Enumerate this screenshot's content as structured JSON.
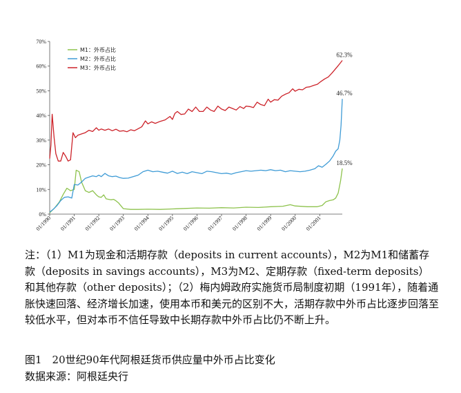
{
  "chart_data": {
    "type": "line",
    "y_unit": "%",
    "ylim": [
      0,
      70
    ],
    "y_ticks": [
      0,
      10,
      20,
      30,
      40,
      50,
      60,
      70
    ],
    "y_tick_labels": [
      "0%",
      "10%",
      "20%",
      "30%",
      "40%",
      "50%",
      "60%",
      "70%"
    ],
    "x_start_year": 1990,
    "x_end_year": 2001.92,
    "x_ticks": [
      1990,
      1991,
      1992,
      1993,
      1994,
      1995,
      1996,
      1997,
      1998,
      1999,
      2000,
      2001
    ],
    "x_tick_labels": [
      "01/1990",
      "01/1991",
      "01/1992",
      "01/1993",
      "01/1994",
      "01/1995",
      "01/1996",
      "01/1997",
      "01/1998",
      "01/1999",
      "01/2000",
      "01/2001"
    ],
    "grid": false,
    "legend_position": "top-left",
    "series": [
      {
        "name": "M1：外币占比",
        "color": "#8dc24c",
        "points": [
          [
            1990.0,
            0.5
          ],
          [
            1990.2,
            2.5
          ],
          [
            1990.4,
            5
          ],
          [
            1990.55,
            8
          ],
          [
            1990.7,
            10.5
          ],
          [
            1990.85,
            9.5
          ],
          [
            1991.0,
            10
          ],
          [
            1991.08,
            17.8
          ],
          [
            1991.2,
            17.2
          ],
          [
            1991.3,
            13
          ],
          [
            1991.45,
            9.5
          ],
          [
            1991.6,
            8.8
          ],
          [
            1991.75,
            9.5
          ],
          [
            1991.9,
            7.8
          ],
          [
            1992.0,
            7
          ],
          [
            1992.1,
            6.8
          ],
          [
            1992.2,
            7.8
          ],
          [
            1992.3,
            6.2
          ],
          [
            1992.4,
            6.0
          ],
          [
            1992.5,
            5.8
          ],
          [
            1992.6,
            6.0
          ],
          [
            1992.7,
            5.4
          ],
          [
            1992.8,
            4.6
          ],
          [
            1992.9,
            3.4
          ],
          [
            1993.0,
            2.2
          ],
          [
            1993.3,
            1.9
          ],
          [
            1993.6,
            1.9
          ],
          [
            1994.0,
            2.0
          ],
          [
            1994.5,
            1.9
          ],
          [
            1995.0,
            2.1
          ],
          [
            1995.5,
            2.3
          ],
          [
            1996.0,
            2.5
          ],
          [
            1996.5,
            2.4
          ],
          [
            1997.0,
            2.6
          ],
          [
            1997.5,
            2.5
          ],
          [
            1998.0,
            2.8
          ],
          [
            1998.5,
            2.7
          ],
          [
            1999.0,
            3.0
          ],
          [
            1999.5,
            3.2
          ],
          [
            1999.8,
            3.8
          ],
          [
            2000.0,
            3.3
          ],
          [
            2000.5,
            3.0
          ],
          [
            2000.9,
            3.0
          ],
          [
            2001.1,
            3.5
          ],
          [
            2001.25,
            5.0
          ],
          [
            2001.4,
            5.5
          ],
          [
            2001.55,
            5.8
          ],
          [
            2001.65,
            6.5
          ],
          [
            2001.75,
            8.5
          ],
          [
            2001.85,
            13.5
          ],
          [
            2001.92,
            18.5
          ]
        ]
      },
      {
        "name": "M2：外币占比",
        "color": "#3e9bd6",
        "points": [
          [
            1990.0,
            0.8
          ],
          [
            1990.15,
            2
          ],
          [
            1990.3,
            3.5
          ],
          [
            1990.45,
            5.5
          ],
          [
            1990.6,
            6.8
          ],
          [
            1990.75,
            7
          ],
          [
            1990.9,
            6.5
          ],
          [
            1991.0,
            12
          ],
          [
            1991.15,
            11.8
          ],
          [
            1991.3,
            13
          ],
          [
            1991.45,
            14.5
          ],
          [
            1991.6,
            15
          ],
          [
            1991.75,
            15.5
          ],
          [
            1991.9,
            15.2
          ],
          [
            1992.0,
            15.8
          ],
          [
            1992.1,
            15.2
          ],
          [
            1992.25,
            16.5
          ],
          [
            1992.4,
            15.5
          ],
          [
            1992.55,
            15.2
          ],
          [
            1992.7,
            15.4
          ],
          [
            1992.85,
            14.8
          ],
          [
            1993.0,
            14.5
          ],
          [
            1993.2,
            14.6
          ],
          [
            1993.4,
            15.2
          ],
          [
            1993.6,
            15.8
          ],
          [
            1993.8,
            17.2
          ],
          [
            1994.0,
            17.8
          ],
          [
            1994.2,
            17.2
          ],
          [
            1994.4,
            17.4
          ],
          [
            1994.6,
            17.0
          ],
          [
            1994.8,
            16.6
          ],
          [
            1995.0,
            17.4
          ],
          [
            1995.2,
            16.5
          ],
          [
            1995.4,
            17.0
          ],
          [
            1995.6,
            16.4
          ],
          [
            1995.8,
            17.2
          ],
          [
            1996.0,
            16.8
          ],
          [
            1996.2,
            16.4
          ],
          [
            1996.4,
            17.4
          ],
          [
            1996.6,
            17.2
          ],
          [
            1996.8,
            16.8
          ],
          [
            1997.0,
            16.4
          ],
          [
            1997.2,
            16.6
          ],
          [
            1997.4,
            16.2
          ],
          [
            1997.6,
            16.8
          ],
          [
            1997.8,
            17.2
          ],
          [
            1998.0,
            17.6
          ],
          [
            1998.2,
            17.4
          ],
          [
            1998.4,
            17.6
          ],
          [
            1998.6,
            17.8
          ],
          [
            1998.8,
            17.6
          ],
          [
            1999.0,
            18.0
          ],
          [
            1999.2,
            17.6
          ],
          [
            1999.4,
            17.8
          ],
          [
            1999.6,
            17.2
          ],
          [
            1999.8,
            17.6
          ],
          [
            2000.0,
            17.4
          ],
          [
            2000.2,
            17.2
          ],
          [
            2000.4,
            17.4
          ],
          [
            2000.6,
            17.8
          ],
          [
            2000.8,
            18.4
          ],
          [
            2000.95,
            19.6
          ],
          [
            2001.1,
            19.0
          ],
          [
            2001.25,
            20.2
          ],
          [
            2001.4,
            21.5
          ],
          [
            2001.55,
            23.6
          ],
          [
            2001.65,
            25.5
          ],
          [
            2001.75,
            26.5
          ],
          [
            2001.82,
            30
          ],
          [
            2001.87,
            36
          ],
          [
            2001.92,
            46.7
          ]
        ]
      },
      {
        "name": "M3：外币占比",
        "color": "#cc2128",
        "points": [
          [
            1990.0,
            22.5
          ],
          [
            1990.05,
            28
          ],
          [
            1990.1,
            40.5
          ],
          [
            1990.18,
            31
          ],
          [
            1990.25,
            24.5
          ],
          [
            1990.35,
            21.5
          ],
          [
            1990.45,
            21.5
          ],
          [
            1990.55,
            25
          ],
          [
            1990.65,
            23.5
          ],
          [
            1990.75,
            21.5
          ],
          [
            1990.85,
            22
          ],
          [
            1990.95,
            33
          ],
          [
            1991.05,
            31
          ],
          [
            1991.15,
            32
          ],
          [
            1991.3,
            32.5
          ],
          [
            1991.45,
            33
          ],
          [
            1991.6,
            34
          ],
          [
            1991.75,
            33.5
          ],
          [
            1991.9,
            35
          ],
          [
            1992.0,
            34
          ],
          [
            1992.1,
            34.5
          ],
          [
            1992.25,
            34.0
          ],
          [
            1992.4,
            34.5
          ],
          [
            1992.55,
            33.8
          ],
          [
            1992.7,
            34.4
          ],
          [
            1992.85,
            33.6
          ],
          [
            1993.0,
            33.8
          ],
          [
            1993.15,
            33.4
          ],
          [
            1993.3,
            34.2
          ],
          [
            1993.45,
            33.8
          ],
          [
            1993.6,
            34.6
          ],
          [
            1993.75,
            35.4
          ],
          [
            1993.9,
            37.8
          ],
          [
            1994.0,
            36.6
          ],
          [
            1994.15,
            37.4
          ],
          [
            1994.3,
            36.8
          ],
          [
            1994.5,
            37.6
          ],
          [
            1994.7,
            38.2
          ],
          [
            1994.9,
            39.6
          ],
          [
            1995.0,
            38.4
          ],
          [
            1995.1,
            40.8
          ],
          [
            1995.2,
            41.6
          ],
          [
            1995.35,
            40.4
          ],
          [
            1995.5,
            40.6
          ],
          [
            1995.65,
            42.6
          ],
          [
            1995.8,
            41.6
          ],
          [
            1995.95,
            43.4
          ],
          [
            1996.1,
            41.6
          ],
          [
            1996.25,
            41.6
          ],
          [
            1996.4,
            43.4
          ],
          [
            1996.55,
            42.2
          ],
          [
            1996.7,
            41.6
          ],
          [
            1996.85,
            43.8
          ],
          [
            1997.0,
            42.6
          ],
          [
            1997.15,
            42.0
          ],
          [
            1997.3,
            43.4
          ],
          [
            1997.45,
            42.8
          ],
          [
            1997.6,
            42.2
          ],
          [
            1997.75,
            43.6
          ],
          [
            1997.9,
            42.8
          ],
          [
            1998.0,
            43.8
          ],
          [
            1998.15,
            43.6
          ],
          [
            1998.3,
            43.2
          ],
          [
            1998.45,
            45.4
          ],
          [
            1998.6,
            44.4
          ],
          [
            1998.75,
            44.0
          ],
          [
            1998.9,
            46.6
          ],
          [
            1999.0,
            45.4
          ],
          [
            1999.15,
            46.4
          ],
          [
            1999.3,
            46.2
          ],
          [
            1999.45,
            47.8
          ],
          [
            1999.6,
            48.6
          ],
          [
            1999.75,
            49.2
          ],
          [
            1999.9,
            50.8
          ],
          [
            2000.0,
            49.8
          ],
          [
            2000.15,
            50.6
          ],
          [
            2000.3,
            50.4
          ],
          [
            2000.45,
            51.4
          ],
          [
            2000.6,
            51.6
          ],
          [
            2000.75,
            52.2
          ],
          [
            2000.9,
            52.6
          ],
          [
            2001.05,
            53.8
          ],
          [
            2001.2,
            54.8
          ],
          [
            2001.35,
            55.6
          ],
          [
            2001.5,
            57.2
          ],
          [
            2001.62,
            58.6
          ],
          [
            2001.72,
            59.8
          ],
          [
            2001.82,
            61.0
          ],
          [
            2001.92,
            62.3
          ]
        ]
      }
    ],
    "end_labels": [
      {
        "series": 2,
        "text": "62.3%"
      },
      {
        "series": 1,
        "text": "46.7%"
      },
      {
        "series": 0,
        "text": "18.5%"
      }
    ]
  },
  "note": "注：（1）M1为现金和活期存款（deposits in current accounts），M2为M1和储蓄存款（deposits in savings accounts），M3为M2、定期存款（fixed-term deposits）和其他存款（other deposits）；（2）梅内姆政府实施货币局制度初期（1991年），随着通胀快速回落、经济增长加速，使用本币和美元的区别不大，活期存款中外币占比逐步回落至较低水平，但对本币不信任导致中长期存款中外币占比仍不断上升。",
  "caption": "图1　20世纪90年代阿根廷货币供应量中外币占比变化",
  "source": "数据来源：阿根廷央行"
}
